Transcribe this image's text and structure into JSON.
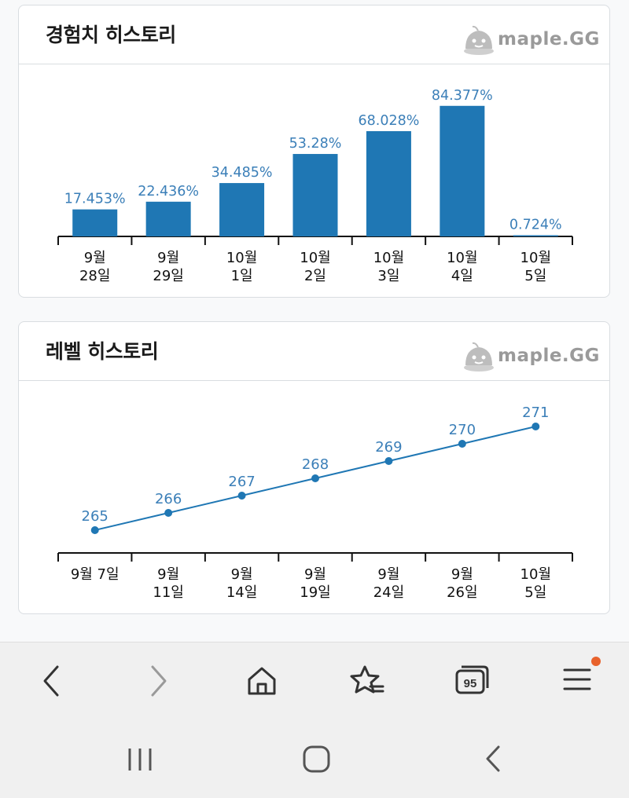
{
  "exp_card": {
    "title": "경험치 히스토리",
    "brand": "maple.GG",
    "chart_data": {
      "type": "bar",
      "categories": [
        [
          "9월",
          "28일"
        ],
        [
          "9월",
          "29일"
        ],
        [
          "10월",
          "1일"
        ],
        [
          "10월",
          "2일"
        ],
        [
          "10월",
          "3일"
        ],
        [
          "10월",
          "4일"
        ],
        [
          "10월",
          "5일"
        ]
      ],
      "values": [
        17.453,
        22.436,
        34.485,
        53.28,
        68.028,
        84.377,
        0.724
      ],
      "labels": [
        "17.453%",
        "22.436%",
        "34.485%",
        "53.28%",
        "68.028%",
        "84.377%",
        "0.724%"
      ],
      "ylim": [
        0,
        100
      ],
      "color": "#1f77b4"
    }
  },
  "level_card": {
    "title": "레벨 히스토리",
    "brand": "maple.GG",
    "chart_data": {
      "type": "line",
      "categories": [
        [
          "9월 7일"
        ],
        [
          "9월",
          "11일"
        ],
        [
          "9월",
          "14일"
        ],
        [
          "9월",
          "19일"
        ],
        [
          "9월",
          "24일"
        ],
        [
          "9월",
          "26일"
        ],
        [
          "10월",
          "5일"
        ]
      ],
      "values": [
        265,
        266,
        267,
        268,
        269,
        270,
        271
      ],
      "labels": [
        "265",
        "266",
        "267",
        "268",
        "269",
        "270",
        "271"
      ],
      "color": "#1f77b4"
    }
  },
  "browser_nav": {
    "back": "back-icon",
    "forward": "forward-icon",
    "home": "home-icon",
    "bookmarks": "bookmark-star-icon",
    "tabs_count": "95",
    "menu": "menu-icon",
    "notification_color": "#e8622c"
  },
  "system_nav": {
    "recents": "recents-icon",
    "home": "system-home-icon",
    "back": "system-back-icon"
  }
}
